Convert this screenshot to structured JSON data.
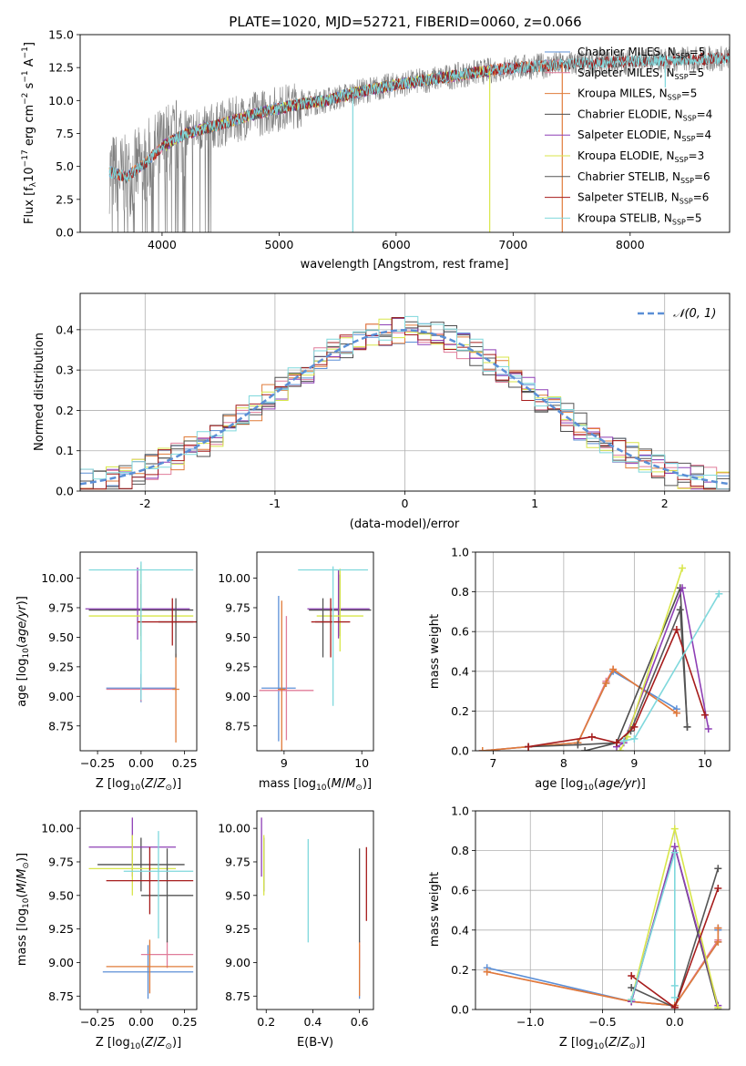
{
  "figure": {
    "title": "PLATE=1020, MJD=52721, FIBERID=0060, z=0.066"
  },
  "colors": {
    "Chabrier MILES": "#5b8fd6",
    "Salpeter MILES": "#e07c9a",
    "Kroupa MILES": "#e07b39",
    "Chabrier ELODIE": "#4d4d4d",
    "Salpeter ELODIE": "#8e3fb5",
    "Kroupa ELODIE": "#d8e64a",
    "Chabrier STELIB": "#555555",
    "Salpeter STELIB": "#a61c1c",
    "Kroupa STELIB": "#7fd8dc",
    "data": "#808080"
  },
  "chart_data": [
    {
      "id": "spectrum",
      "type": "line",
      "title": "PLATE=1020, MJD=52721, FIBERID=0060, z=0.066",
      "xlabel": "wavelength [Angstrom, rest frame]",
      "ylabel": "Flux [f_λ 10^-17 erg cm^-2 s^-1 A^-1]",
      "xlim": [
        3300,
        8850
      ],
      "ylim": [
        0,
        15
      ],
      "xticks": [
        4000,
        5000,
        6000,
        7000,
        8000
      ],
      "yticks": [
        0.0,
        2.5,
        5.0,
        7.5,
        10.0,
        12.5,
        15.0
      ],
      "legend_position": "top-right",
      "legend": [
        {
          "name": "Chabrier MILES",
          "nssp": "5"
        },
        {
          "name": "Salpeter MILES",
          "nssp": "5"
        },
        {
          "name": "Kroupa MILES",
          "nssp": "5"
        },
        {
          "name": "Chabrier ELODIE",
          "nssp": "4"
        },
        {
          "name": "Salpeter ELODIE",
          "nssp": "4"
        },
        {
          "name": "Kroupa ELODIE",
          "nssp": "3"
        },
        {
          "name": "Chabrier STELIB",
          "nssp": "6"
        },
        {
          "name": "Salpeter STELIB",
          "nssp": "6"
        },
        {
          "name": "Kroupa STELIB",
          "nssp": "5"
        }
      ],
      "continuum": [
        [
          3550,
          4.6
        ],
        [
          3700,
          4.2
        ],
        [
          3850,
          5.2
        ],
        [
          4000,
          6.5
        ],
        [
          4200,
          7.5
        ],
        [
          4500,
          8.2
        ],
        [
          4800,
          9.0
        ],
        [
          5100,
          9.6
        ],
        [
          5400,
          10.0
        ],
        [
          5700,
          10.7
        ],
        [
          6000,
          11.2
        ],
        [
          6300,
          11.6
        ],
        [
          6600,
          12.0
        ],
        [
          6900,
          12.4
        ],
        [
          7200,
          12.6
        ],
        [
          7500,
          12.8
        ],
        [
          7800,
          12.9
        ],
        [
          8100,
          13.0
        ],
        [
          8400,
          13.1
        ],
        [
          8800,
          13.2
        ]
      ],
      "spikes": [
        [
          5630,
          0
        ],
        [
          6800,
          0
        ],
        [
          7420,
          0
        ],
        [
          8300,
          11.0
        ]
      ]
    },
    {
      "id": "residuals",
      "type": "line",
      "xlabel": "(data-model)/error",
      "ylabel": "Normed distribution",
      "xlim": [
        -2.5,
        2.5
      ],
      "ylim": [
        0,
        0.49
      ],
      "xticks": [
        -2,
        -1,
        0,
        1,
        2
      ],
      "yticks": [
        0.0,
        0.1,
        0.2,
        0.3,
        0.4
      ],
      "legend_position": "top-right",
      "gauss_label": "𝒩(0, 1)"
    },
    {
      "id": "age-vs-Z",
      "type": "scatter",
      "xlabel": "Z [log10(Z/Z⊙)]",
      "ylabel": "age [log10(age/yr)]",
      "xlim": [
        -0.35,
        0.32
      ],
      "ylim": [
        8.54,
        10.22
      ],
      "xticks": [
        -0.25,
        0.0,
        0.25
      ],
      "xticklabels": [
        "−0.25",
        "0.00",
        "0.25"
      ],
      "yticks": [
        8.75,
        9.0,
        9.25,
        9.5,
        9.75,
        10.0
      ],
      "yticklabels": [
        "8.75",
        "9.00",
        "9.25",
        "9.50",
        "9.75",
        "10.00"
      ],
      "points": [
        {
          "model": "Chabrier MILES",
          "x": 0.0,
          "xerr": 0.2,
          "y": 9.07,
          "yerr": [
            0.12,
            0.12
          ]
        },
        {
          "model": "Salpeter MILES",
          "x": 0.0,
          "xerr": 0.2,
          "y": 9.06,
          "yerr": [
            0.1,
            0.1
          ]
        },
        {
          "model": "Kroupa MILES",
          "x": 0.2,
          "xerr": 0.02,
          "y": 9.06,
          "yerr": [
            0.45,
            0.3
          ]
        },
        {
          "model": "Chabrier ELODIE",
          "x": 0.0,
          "xerr": 0.3,
          "y": 9.73,
          "yerr": [
            0.22,
            0.22
          ]
        },
        {
          "model": "Salpeter ELODIE",
          "x": -0.02,
          "xerr": 0.3,
          "y": 9.74,
          "yerr": [
            0.26,
            0.35
          ]
        },
        {
          "model": "Kroupa ELODIE",
          "x": 0.0,
          "xerr": 0.3,
          "y": 9.68,
          "yerr": [
            0.3,
            0.43
          ]
        },
        {
          "model": "Chabrier STELIB",
          "x": 0.2,
          "xerr": 0.1,
          "y": 9.63,
          "yerr": [
            0.3,
            0.2
          ]
        },
        {
          "model": "Salpeter STELIB",
          "x": 0.18,
          "xerr": 0.2,
          "y": 9.63,
          "yerr": [
            0.2,
            0.2
          ]
        },
        {
          "model": "Kroupa STELIB",
          "x": 0.0,
          "xerr": 0.3,
          "y": 10.07,
          "yerr": [
            1.1,
            0.07
          ]
        }
      ]
    },
    {
      "id": "age-vs-mass",
      "type": "scatter",
      "xlabel": "mass [log10(M/M⊙)]",
      "ylabel": "",
      "xlim": [
        8.65,
        10.15
      ],
      "ylim": [
        8.54,
        10.22
      ],
      "xticks": [
        9,
        10
      ],
      "xticklabels": [
        "9",
        "10"
      ],
      "yticks": [
        8.75,
        9.0,
        9.25,
        9.5,
        9.75,
        10.0
      ],
      "yticklabels": [
        "8.75",
        "9.00",
        "9.25",
        "9.50",
        "9.75",
        "10.00"
      ],
      "points": [
        {
          "model": "Chabrier MILES",
          "x": 8.93,
          "xerr": 0.22,
          "y": 9.07,
          "yerr": [
            0.45,
            0.78
          ]
        },
        {
          "model": "Salpeter MILES",
          "x": 9.03,
          "xerr": 0.35,
          "y": 9.05,
          "yerr": [
            0.42,
            0.63
          ]
        },
        {
          "model": "Kroupa MILES",
          "x": 8.97,
          "xerr": 0.05,
          "y": 9.06,
          "yerr": [
            0.55,
            0.75
          ]
        },
        {
          "model": "Chabrier ELODIE",
          "x": 9.72,
          "xerr": 0.4,
          "y": 9.73,
          "yerr": [
            0.22,
            0.3
          ]
        },
        {
          "model": "Salpeter ELODIE",
          "x": 9.7,
          "xerr": 0.4,
          "y": 9.74,
          "yerr": [
            0.25,
            0.33
          ]
        },
        {
          "model": "Kroupa ELODIE",
          "x": 9.72,
          "xerr": 0.3,
          "y": 9.68,
          "yerr": [
            0.3,
            0.4
          ]
        },
        {
          "model": "Chabrier STELIB",
          "x": 9.5,
          "xerr": 0.1,
          "y": 9.63,
          "yerr": [
            0.3,
            0.2
          ]
        },
        {
          "model": "Salpeter STELIB",
          "x": 9.6,
          "xerr": 0.25,
          "y": 9.63,
          "yerr": [
            0.3,
            0.2
          ]
        },
        {
          "model": "Kroupa STELIB",
          "x": 9.63,
          "xerr": 0.45,
          "y": 10.07,
          "yerr": [
            1.15,
            0.03
          ]
        }
      ]
    },
    {
      "id": "weight-vs-age",
      "type": "line",
      "xlabel": "age [log10(age/yr)]",
      "ylabel": "mass weight",
      "xlim": [
        6.75,
        10.35
      ],
      "ylim": [
        0,
        1
      ],
      "xticks": [
        7,
        8,
        9,
        10
      ],
      "xticklabels": [
        "7",
        "8",
        "9",
        "10"
      ],
      "yticks": [
        0.0,
        0.2,
        0.4,
        0.6,
        0.8,
        1.0
      ],
      "yticklabels": [
        "0.0",
        "0.2",
        "0.4",
        "0.6",
        "0.8",
        "1.0"
      ],
      "series": [
        {
          "model": "Chabrier MILES",
          "x": [
            6.85,
            7.5,
            8.2,
            8.6,
            8.7,
            9.6
          ],
          "y": [
            0.0,
            0.02,
            0.04,
            0.34,
            0.4,
            0.21
          ]
        },
        {
          "model": "Salpeter MILES",
          "x": [
            6.85,
            7.5,
            8.2,
            8.6,
            8.7,
            9.6
          ],
          "y": [
            0.0,
            0.02,
            0.04,
            0.35,
            0.41,
            0.19
          ]
        },
        {
          "model": "Kroupa MILES",
          "x": [
            6.85,
            7.5,
            8.2,
            8.6,
            8.7,
            9.6
          ],
          "y": [
            0.0,
            0.02,
            0.04,
            0.34,
            0.41,
            0.19
          ]
        },
        {
          "model": "Chabrier ELODIE",
          "x": [
            8.3,
            8.75,
            9.65,
            9.75
          ],
          "y": [
            0.0,
            0.04,
            0.82,
            0.12
          ]
        },
        {
          "model": "Salpeter ELODIE",
          "x": [
            8.75,
            8.85,
            9.68,
            10.05
          ],
          "y": [
            0.02,
            0.04,
            0.82,
            0.11
          ]
        },
        {
          "model": "Kroupa ELODIE",
          "x": [
            8.8,
            8.9,
            9.68
          ],
          "y": [
            0.0,
            0.07,
            0.92
          ]
        },
        {
          "model": "Chabrier STELIB",
          "x": [
            7.5,
            8.2,
            8.75,
            8.95,
            9.65,
            9.75
          ],
          "y": [
            0.02,
            0.03,
            0.04,
            0.1,
            0.71,
            0.12
          ]
        },
        {
          "model": "Salpeter STELIB",
          "x": [
            7.5,
            8.4,
            8.75,
            9.0,
            9.6,
            10.0
          ],
          "y": [
            0.02,
            0.07,
            0.04,
            0.12,
            0.61,
            0.18
          ]
        },
        {
          "model": "Kroupa STELIB",
          "x": [
            8.85,
            9.0,
            10.2
          ],
          "y": [
            0.05,
            0.06,
            0.79
          ]
        }
      ]
    },
    {
      "id": "mass-vs-Z",
      "type": "scatter",
      "xlabel": "Z [log10(Z/Z⊙)]",
      "ylabel": "mass [log10(M/M⊙)]",
      "xlim": [
        -0.35,
        0.32
      ],
      "ylim": [
        8.65,
        10.13
      ],
      "xticks": [
        -0.25,
        0.0,
        0.25
      ],
      "xticklabels": [
        "−0.25",
        "0.00",
        "0.25"
      ],
      "yticks": [
        8.75,
        9.0,
        9.25,
        9.5,
        9.75,
        10.0
      ],
      "yticklabels": [
        "8.75",
        "9.00",
        "9.25",
        "9.50",
        "9.75",
        "10.00"
      ],
      "points": [
        {
          "model": "Chabrier MILES",
          "x": 0.04,
          "xerr": 0.26,
          "y": 8.93,
          "yerr": [
            0.2,
            0.2
          ]
        },
        {
          "model": "Salpeter MILES",
          "x": 0.15,
          "xerr": 0.15,
          "y": 9.06,
          "yerr": [
            0.1,
            0.1
          ]
        },
        {
          "model": "Kroupa MILES",
          "x": 0.05,
          "xerr": 0.25,
          "y": 8.97,
          "yerr": [
            0.2,
            0.2
          ]
        },
        {
          "model": "Chabrier ELODIE",
          "x": 0.0,
          "xerr": 0.25,
          "y": 9.73,
          "yerr": [
            0.2,
            0.2
          ]
        },
        {
          "model": "Salpeter ELODIE",
          "x": -0.05,
          "xerr": 0.25,
          "y": 9.86,
          "yerr": [
            0.22,
            0.22
          ]
        },
        {
          "model": "Kroupa ELODIE",
          "x": -0.05,
          "xerr": 0.25,
          "y": 9.7,
          "yerr": [
            0.2,
            0.25
          ]
        },
        {
          "model": "Chabrier STELIB",
          "x": 0.15,
          "xerr": 0.15,
          "y": 9.5,
          "yerr": [
            0.35,
            0.35
          ]
        },
        {
          "model": "Salpeter STELIB",
          "x": 0.05,
          "xerr": 0.25,
          "y": 9.61,
          "yerr": [
            0.25,
            0.25
          ]
        },
        {
          "model": "Kroupa STELIB",
          "x": 0.1,
          "xerr": 0.2,
          "y": 9.68,
          "yerr": [
            0.5,
            0.3
          ]
        }
      ]
    },
    {
      "id": "mass-vs-ebv",
      "type": "scatter",
      "xlabel": "E(B-V)",
      "ylabel": "",
      "xlim": [
        0.16,
        0.66
      ],
      "ylim": [
        8.65,
        10.13
      ],
      "xticks": [
        0.2,
        0.4,
        0.6
      ],
      "xticklabels": [
        "0.2",
        "0.4",
        "0.6"
      ],
      "yticks": [
        8.75,
        9.0,
        9.25,
        9.5,
        9.75,
        10.0
      ],
      "yticklabels": [
        "8.75",
        "9.00",
        "9.25",
        "9.50",
        "9.75",
        "10.00"
      ],
      "points": [
        {
          "model": "Chabrier MILES",
          "x": 0.6,
          "y": 8.93,
          "yerr": [
            0.2,
            0.2
          ]
        },
        {
          "model": "Salpeter MILES",
          "x": 0.6,
          "y": 9.06,
          "yerr": [
            0.1,
            0.1
          ]
        },
        {
          "model": "Kroupa MILES",
          "x": 0.6,
          "y": 8.95,
          "yerr": [
            0.2,
            0.2
          ]
        },
        {
          "model": "Chabrier ELODIE",
          "x": 0.19,
          "y": 9.73,
          "yerr": [
            0.2,
            0.2
          ]
        },
        {
          "model": "Salpeter ELODIE",
          "x": 0.18,
          "y": 9.86,
          "yerr": [
            0.22,
            0.22
          ]
        },
        {
          "model": "Kroupa ELODIE",
          "x": 0.19,
          "y": 9.7,
          "yerr": [
            0.2,
            0.25
          ]
        },
        {
          "model": "Chabrier STELIB",
          "x": 0.6,
          "y": 9.5,
          "yerr": [
            0.35,
            0.35
          ]
        },
        {
          "model": "Salpeter STELIB",
          "x": 0.63,
          "y": 9.61,
          "yerr": [
            0.3,
            0.25
          ]
        },
        {
          "model": "Kroupa STELIB",
          "x": 0.38,
          "y": 9.53,
          "yerr": [
            0.38,
            0.39
          ]
        }
      ]
    },
    {
      "id": "weight-vs-Z",
      "type": "line",
      "xlabel": "Z [log10(Z/Z⊙)]",
      "ylabel": "mass weight",
      "xlim": [
        -1.38,
        0.38
      ],
      "ylim": [
        0,
        1
      ],
      "xticks": [
        -1.0,
        -0.5,
        0.0
      ],
      "xticklabels": [
        "−1.0",
        "−0.5",
        "0.0"
      ],
      "yticks": [
        0.0,
        0.2,
        0.4,
        0.6,
        0.8,
        1.0
      ],
      "yticklabels": [
        "0.0",
        "0.2",
        "0.4",
        "0.6",
        "0.8",
        "1.0"
      ],
      "series": [
        {
          "model": "Chabrier MILES",
          "x": [
            -1.3,
            -0.3,
            0.0,
            0.3,
            0.3,
            0.3
          ],
          "y": [
            0.21,
            0.04,
            0.02,
            0.34,
            0.4,
            0.41
          ]
        },
        {
          "model": "Salpeter MILES",
          "x": [
            -1.3,
            -0.3,
            0.0,
            0.3,
            0.3
          ],
          "y": [
            0.19,
            0.04,
            0.02,
            0.35,
            0.41
          ]
        },
        {
          "model": "Kroupa MILES",
          "x": [
            -1.3,
            -0.3,
            0.0,
            0.3,
            0.3
          ],
          "y": [
            0.19,
            0.04,
            0.02,
            0.34,
            0.41
          ]
        },
        {
          "model": "Chabrier ELODIE",
          "x": [
            -0.3,
            0.0,
            0.3
          ],
          "y": [
            0.04,
            0.82,
            0.0
          ]
        },
        {
          "model": "Salpeter ELODIE",
          "x": [
            -0.3,
            0.0,
            0.3
          ],
          "y": [
            0.04,
            0.82,
            0.02
          ]
        },
        {
          "model": "Kroupa ELODIE",
          "x": [
            -0.3,
            0.0,
            0.3
          ],
          "y": [
            0.05,
            0.91,
            0.01
          ]
        },
        {
          "model": "Chabrier STELIB",
          "x": [
            -0.3,
            0.0,
            0.3
          ],
          "y": [
            0.11,
            0.01,
            0.71
          ]
        },
        {
          "model": "Salpeter STELIB",
          "x": [
            -0.3,
            0.0,
            0.3
          ],
          "y": [
            0.17,
            0.01,
            0.61
          ]
        },
        {
          "model": "Kroupa STELIB",
          "x": [
            -0.3,
            0.0,
            0.0,
            0.0
          ],
          "y": [
            0.05,
            0.79,
            0.06,
            0.12
          ]
        }
      ]
    }
  ]
}
